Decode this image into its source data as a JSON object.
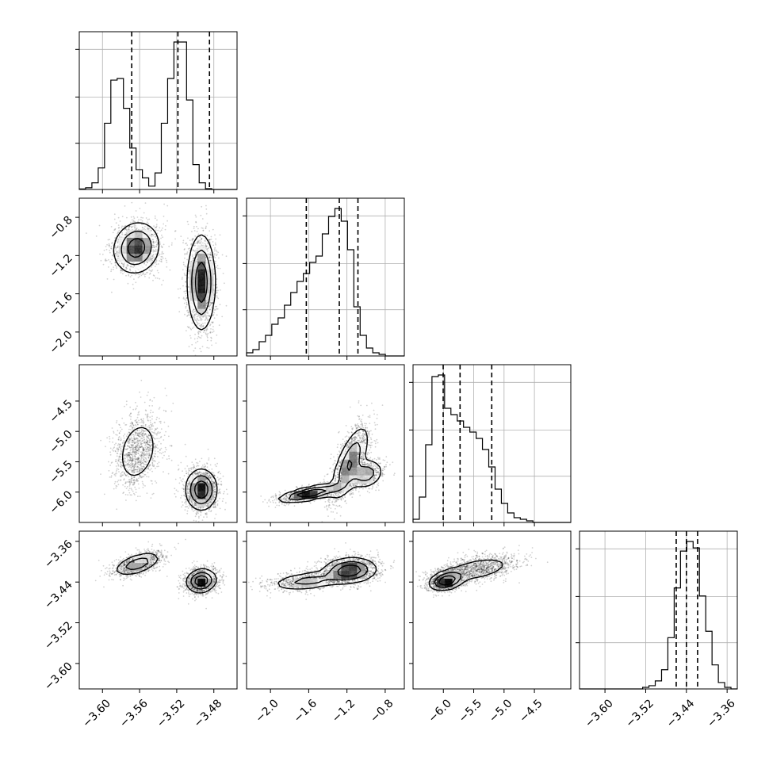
{
  "chart_data": {
    "type": "corner",
    "title": "",
    "parameters": [
      "",
      "",
      "",
      ""
    ],
    "ranges": [
      [
        -3.625,
        -3.455
      ],
      [
        -2.25,
        -0.6
      ],
      [
        -6.5,
        -3.9
      ],
      [
        -3.65,
        -3.34
      ]
    ],
    "grid": true,
    "colors": {
      "line": "#000000",
      "grid": "#b0b0b0",
      "scatter": "#555555"
    },
    "ticks": {
      "x": [
        {
          "values": [
            -3.6,
            -3.56,
            -3.52,
            -3.48
          ],
          "labels": [
            "−3.60",
            "−3.56",
            "−3.52",
            "−3.48"
          ]
        },
        {
          "values": [
            -2.0,
            -1.6,
            -1.2,
            -0.8
          ],
          "labels": [
            "−2.0",
            "−1.6",
            "−1.2",
            "−0.8"
          ]
        },
        {
          "values": [
            -6.0,
            -5.5,
            -5.0,
            -4.5
          ],
          "labels": [
            "−6.0",
            "−5.5",
            "−5.0",
            "−4.5"
          ]
        },
        {
          "values": [
            -3.6,
            -3.52,
            -3.44,
            -3.36
          ],
          "labels": [
            "−3.60",
            "−3.52",
            "−3.44",
            "−3.36"
          ]
        }
      ],
      "y": [
        null,
        {
          "values": [
            -0.8,
            -1.2,
            -1.6,
            -2.0
          ],
          "labels": [
            "−0.8",
            "−1.2",
            "−1.6",
            "−2.0"
          ]
        },
        {
          "values": [
            -4.5,
            -5.0,
            -5.5,
            -6.0
          ],
          "labels": [
            "−4.5",
            "−5.0",
            "−5.5",
            "−6.0"
          ]
        },
        {
          "values": [
            -3.36,
            -3.44,
            -3.52,
            -3.6
          ],
          "labels": [
            "−3.36",
            "−3.44",
            "−3.52",
            "−3.60"
          ]
        }
      ]
    },
    "histograms": [
      {
        "parameter": 0,
        "bin_edges": [
          -3.625,
          -3.6182,
          -3.6114,
          -3.6046,
          -3.5978,
          -3.591,
          -3.5842,
          -3.5774,
          -3.5706,
          -3.5638,
          -3.557,
          -3.5502,
          -3.5434,
          -3.5366,
          -3.5298,
          -3.523,
          -3.5162,
          -3.5094,
          -3.5026,
          -3.4958,
          -3.489,
          -3.4822,
          -3.4754,
          -3.4686,
          -3.4618,
          -3.455
        ],
        "counts": [
          0.3,
          1,
          4,
          13,
          40,
          66,
          67,
          49,
          25,
          12,
          7,
          2,
          10,
          40,
          67,
          89,
          89,
          54,
          15,
          4,
          0.5,
          0,
          0,
          0,
          0
        ],
        "quantiles": [
          -3.5685,
          -3.5187,
          -3.4847
        ]
      },
      {
        "parameter": 1,
        "bin_edges": [
          -2.25,
          -2.184,
          -2.118,
          -2.052,
          -1.986,
          -1.92,
          -1.854,
          -1.788,
          -1.722,
          -1.656,
          -1.59,
          -1.524,
          -1.458,
          -1.392,
          -1.326,
          -1.26,
          -1.194,
          -1.128,
          -1.062,
          -0.996,
          -0.93,
          -0.864,
          -0.798,
          -0.732,
          -0.666,
          -0.6
        ],
        "counts": [
          2,
          4,
          9,
          13,
          20,
          24,
          32,
          40,
          47,
          52,
          59,
          63,
          77,
          88,
          93,
          85,
          67,
          31,
          13,
          5,
          2,
          1,
          0,
          0,
          0
        ],
        "quantiles": [
          -1.625,
          -1.28,
          -1.085
        ]
      },
      {
        "parameter": 2,
        "bin_edges": [
          -6.5,
          -6.396,
          -6.292,
          -6.188,
          -6.084,
          -5.98,
          -5.876,
          -5.772,
          -5.668,
          -5.564,
          -5.46,
          -5.356,
          -5.252,
          -5.148,
          -5.044,
          -4.94,
          -4.836,
          -4.732,
          -4.628,
          -4.524,
          -4.42,
          -4.316,
          -4.212,
          -4.108,
          -4.004,
          -3.9
        ],
        "counts": [
          2,
          16,
          49,
          92,
          93,
          72,
          68,
          64,
          60,
          57,
          53,
          46,
          35,
          21,
          12,
          6,
          3,
          2,
          1,
          0,
          0,
          0,
          0,
          0,
          0
        ],
        "quantiles": [
          -6.003,
          -5.725,
          -5.203
        ]
      },
      {
        "parameter": 3,
        "bin_edges": [
          -3.65,
          -3.6376,
          -3.6252,
          -3.6128,
          -3.6004,
          -3.588,
          -3.5756,
          -3.5632,
          -3.5508,
          -3.5384,
          -3.526,
          -3.5136,
          -3.5012,
          -3.4888,
          -3.4764,
          -3.464,
          -3.4516,
          -3.4392,
          -3.4268,
          -3.4144,
          -3.402,
          -3.3896,
          -3.3772,
          -3.3648,
          -3.3524,
          -3.34
        ],
        "counts": [
          0,
          0,
          0,
          0,
          0,
          0,
          0,
          0,
          0,
          0,
          1,
          2,
          5,
          12,
          32,
          63,
          86,
          92,
          88,
          58,
          36,
          15,
          4,
          1,
          0
        ],
        "quantiles": [
          -3.46,
          -3.44,
          -3.418
        ]
      }
    ],
    "density_panels": [
      {
        "x_param": 0,
        "y_param": 1,
        "modes": [
          {
            "cx": -3.5635,
            "cy": -1.12,
            "sx": 0.0125,
            "sy": 0.135,
            "rho": 0.1,
            "weight": 0.45
          },
          {
            "cx": -3.4935,
            "cy": -1.48,
            "sx": 0.0075,
            "sy": 0.25,
            "rho": 0.0,
            "weight": 0.55
          }
        ]
      },
      {
        "x_param": 0,
        "y_param": 2,
        "modes": [
          {
            "cx": -3.562,
            "cy": -5.33,
            "sx": 0.012,
            "sy": 0.29,
            "rho": 0.25,
            "weight": 0.45
          },
          {
            "cx": -3.4935,
            "cy": -5.96,
            "sx": 0.0085,
            "sy": 0.17,
            "rho": 0.0,
            "weight": 0.55
          }
        ]
      },
      {
        "x_param": 0,
        "y_param": 3,
        "modes": [
          {
            "cx": -3.5625,
            "cy": -3.4045,
            "sx": 0.0125,
            "sy": 0.0115,
            "rho": 0.55,
            "weight": 0.45
          },
          {
            "cx": -3.4935,
            "cy": -3.4375,
            "sx": 0.008,
            "sy": 0.0115,
            "rho": 0.1,
            "weight": 0.55
          }
        ]
      },
      {
        "x_param": 1,
        "y_param": 2,
        "modes": [
          {
            "cx": -1.58,
            "cy": -6.02,
            "sx": 0.17,
            "sy": 0.075,
            "rho": 0.7,
            "weight": 0.3
          },
          {
            "cx": -1.17,
            "cy": -5.52,
            "sx": 0.1,
            "sy": 0.31,
            "rho": 0.7,
            "weight": 0.5
          },
          {
            "cx": -1.0,
            "cy": -5.7,
            "sx": 0.09,
            "sy": 0.12,
            "rho": 0.2,
            "weight": 0.2
          }
        ]
      },
      {
        "x_param": 1,
        "y_param": 3,
        "modes": [
          {
            "cx": -1.6,
            "cy": -3.4375,
            "sx": 0.2,
            "sy": 0.0095,
            "rho": 0.4,
            "weight": 0.35
          },
          {
            "cx": -1.17,
            "cy": -3.417,
            "sx": 0.14,
            "sy": 0.0125,
            "rho": 0.1,
            "weight": 0.65
          }
        ]
      },
      {
        "x_param": 2,
        "y_param": 3,
        "modes": [
          {
            "cx": -5.95,
            "cy": -3.4375,
            "sx": 0.14,
            "sy": 0.0095,
            "rho": 0.3,
            "weight": 0.5
          },
          {
            "cx": -5.45,
            "cy": -3.415,
            "sx": 0.32,
            "sy": 0.0135,
            "rho": 0.5,
            "weight": 0.5
          }
        ]
      }
    ]
  }
}
